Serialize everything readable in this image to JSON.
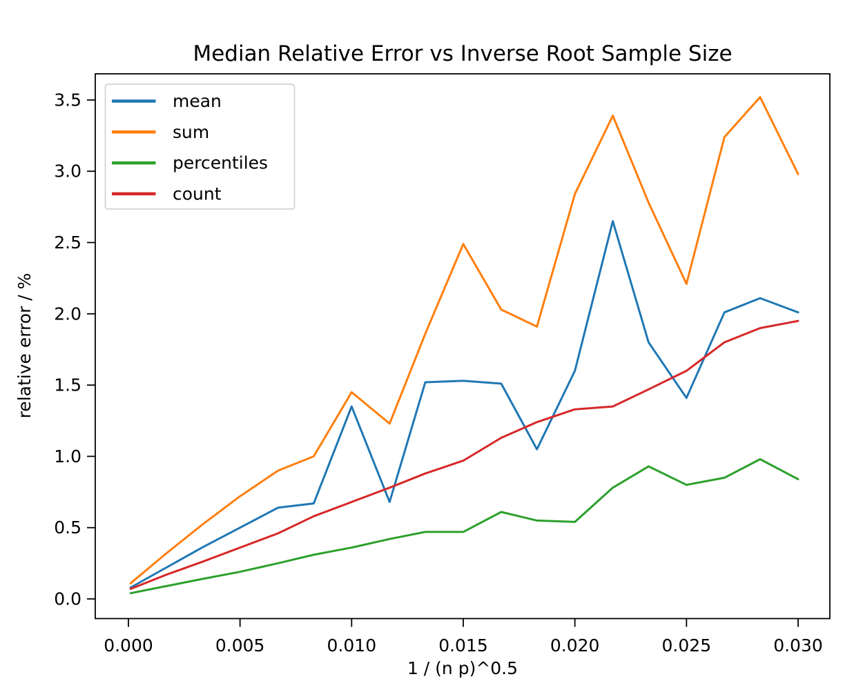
{
  "page": {
    "background_color": "#ffffff"
  },
  "chart_data": {
    "type": "line",
    "title": "Median Relative Error vs Inverse Root Sample Size",
    "xlabel": "1 / (n p)^0.5",
    "ylabel": "relative error / %",
    "grid": false,
    "frame_color": "#000000",
    "x": [
      0.0001,
      0.0017,
      0.0033,
      0.005,
      0.0067,
      0.0083,
      0.01,
      0.0117,
      0.0133,
      0.015,
      0.0167,
      0.0183,
      0.02,
      0.0217,
      0.0233,
      0.025,
      0.0267,
      0.0283,
      0.03
    ],
    "series": [
      {
        "name": "mean",
        "color": "#1f77b4",
        "values": [
          0.08,
          0.22,
          0.36,
          0.5,
          0.64,
          0.67,
          1.35,
          0.68,
          1.52,
          1.53,
          1.51,
          1.05,
          1.6,
          2.65,
          1.8,
          1.41,
          2.01,
          2.11,
          2.01
        ]
      },
      {
        "name": "sum",
        "color": "#ff7f0e",
        "values": [
          0.11,
          0.32,
          0.52,
          0.72,
          0.9,
          1.0,
          1.45,
          1.23,
          1.86,
          2.49,
          2.03,
          1.91,
          2.84,
          3.39,
          2.78,
          2.21,
          3.24,
          3.52,
          2.98
        ]
      },
      {
        "name": "percentiles",
        "color": "#2ca02c",
        "values": [
          0.04,
          0.09,
          0.14,
          0.19,
          0.25,
          0.31,
          0.36,
          0.42,
          0.47,
          0.47,
          0.61,
          0.55,
          0.54,
          0.78,
          0.93,
          0.8,
          0.85,
          0.98,
          0.84
        ]
      },
      {
        "name": "count",
        "color": "#d62728",
        "values": [
          0.07,
          0.17,
          0.26,
          0.36,
          0.46,
          0.58,
          0.68,
          0.78,
          0.88,
          0.97,
          1.13,
          1.24,
          1.33,
          1.35,
          1.47,
          1.6,
          1.8,
          1.9,
          1.95
        ]
      }
    ],
    "xlim": [
      -0.0014847,
      0.0314229
    ],
    "ylim": [
      -0.13795,
      3.6834
    ],
    "x_ticks": {
      "values": [
        0.0,
        0.005,
        0.01,
        0.015,
        0.02,
        0.025,
        0.03
      ],
      "labels": [
        "0.000",
        "0.005",
        "0.010",
        "0.015",
        "0.020",
        "0.025",
        "0.030"
      ]
    },
    "y_ticks": {
      "values": [
        0.0,
        0.5,
        1.0,
        1.5,
        2.0,
        2.5,
        3.0,
        3.5
      ],
      "labels": [
        "0.0",
        "0.5",
        "1.0",
        "1.5",
        "2.0",
        "2.5",
        "3.0",
        "3.5"
      ]
    },
    "legend": {
      "position": "upper left",
      "entries": [
        "mean",
        "sum",
        "percentiles",
        "count"
      ],
      "border_color": "#cccccc",
      "background_color": "#ffffff"
    }
  }
}
